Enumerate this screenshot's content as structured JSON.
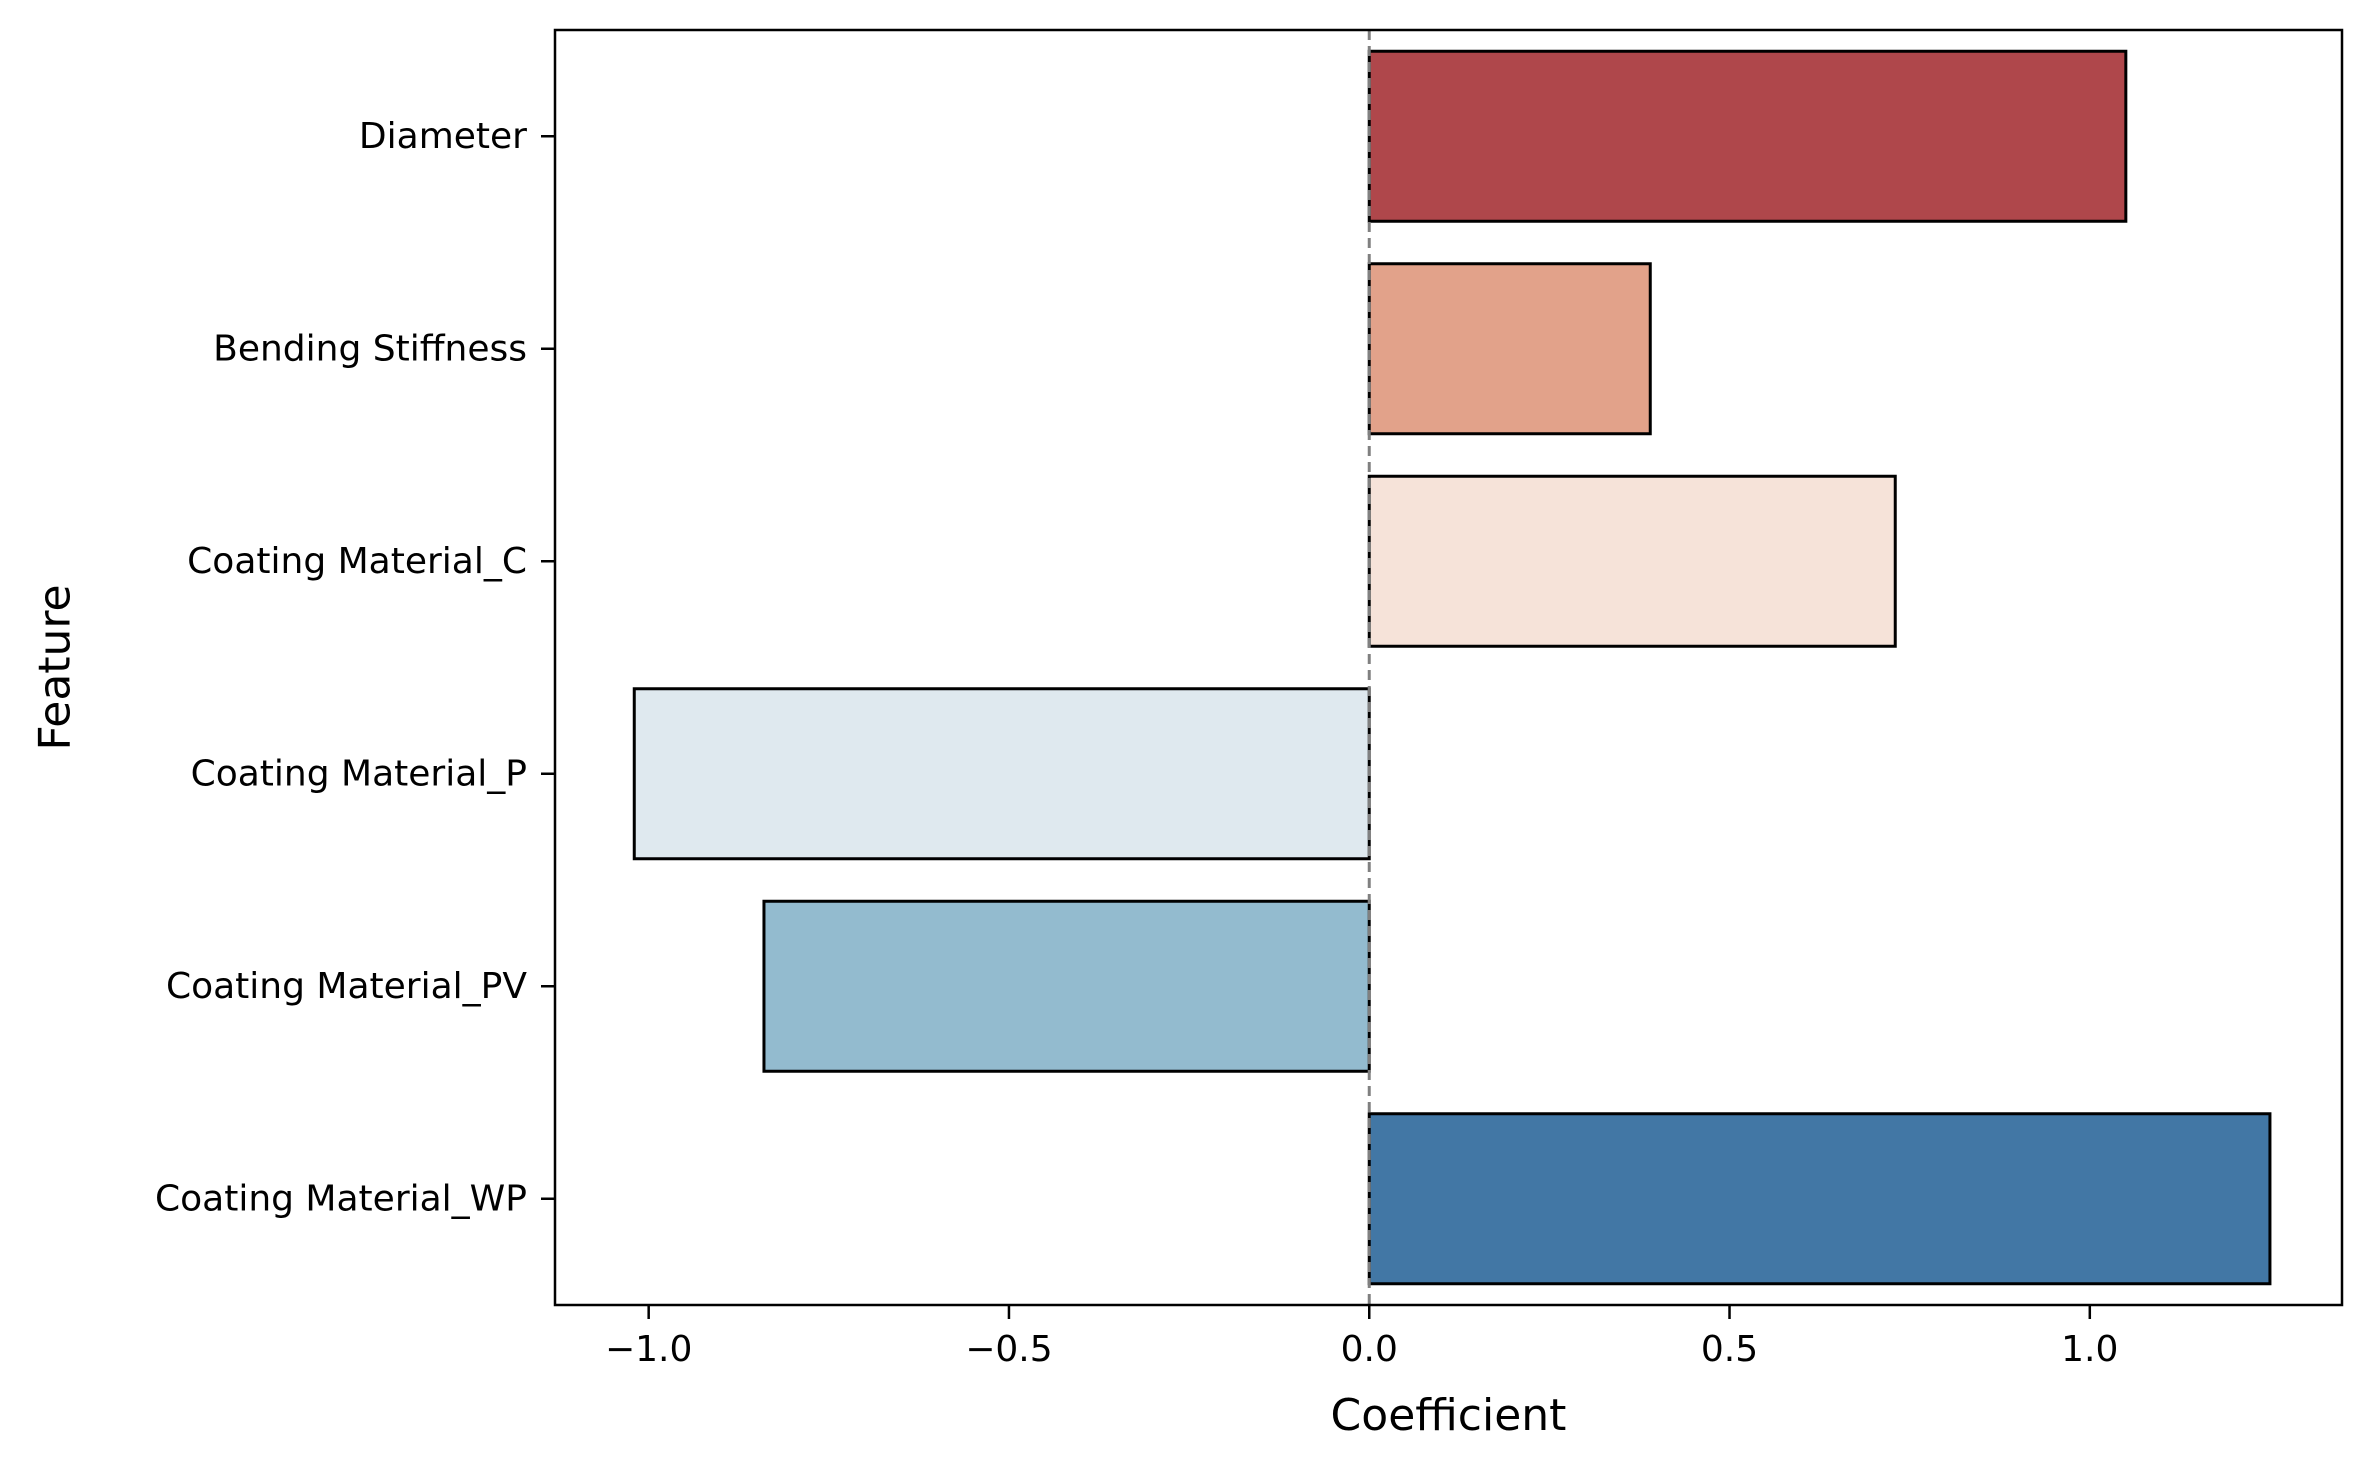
{
  "chart_data": {
    "type": "bar",
    "orientation": "horizontal",
    "title": "",
    "xlabel": "Coefficient",
    "ylabel": "Feature",
    "categories": [
      "Diameter",
      "Bending Stiffness",
      "Coating Material_C",
      "Coating Material_P",
      "Coating Material_PV",
      "Coating Material_WP"
    ],
    "values": [
      1.05,
      0.39,
      0.73,
      -1.02,
      -0.84,
      1.25
    ],
    "colors": [
      "#af474b",
      "#e2a28a",
      "#f6e3d9",
      "#dfe9ef",
      "#93bbcf",
      "#4277a5"
    ],
    "xlim": [
      -1.13,
      1.35
    ],
    "xticks": [
      -1.0,
      -0.5,
      0.0,
      0.5,
      1.0
    ],
    "xtick_labels": [
      "−1.0",
      "−0.5",
      "0.0",
      "0.5",
      "1.0"
    ],
    "reference_line": {
      "x": 0.0,
      "style": "dashed",
      "color": "#808080"
    },
    "grid": false,
    "legend": "none"
  }
}
